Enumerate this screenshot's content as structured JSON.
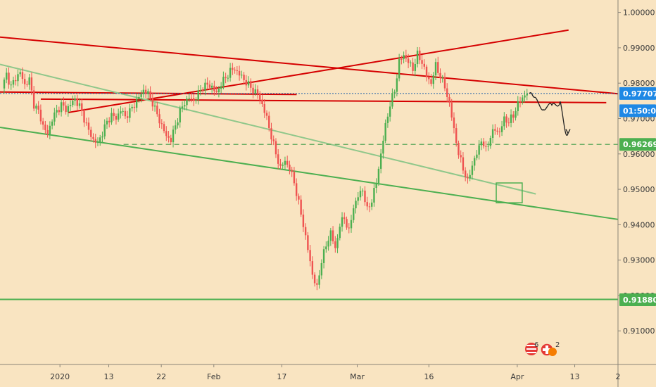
{
  "chart_data": {
    "type": "candlestick",
    "y_ticks": [
      "1.00000",
      "0.99000",
      "0.98000",
      "0.97000",
      "0.96000",
      "0.95000",
      "0.94000",
      "0.93000",
      "0.92000",
      "0.91000"
    ],
    "x_ticks": [
      "2020",
      "13",
      "22",
      "Feb",
      "17",
      "Mar",
      "16",
      "Apr",
      "13",
      "2"
    ],
    "ylim": [
      0.9005,
      1.0035
    ],
    "price_badges": {
      "current": {
        "label": "0.97707",
        "value": 0.97707,
        "color": "#1e88e5"
      },
      "timer": {
        "label": "01:50:03",
        "value": 0.9722,
        "color": "#1e88e5"
      },
      "dashed_level": {
        "label": "0.96269",
        "value": 0.96269,
        "color": "#4caf50"
      },
      "support_level": {
        "label": "0.91880",
        "value": 0.9188,
        "color": "#4caf50"
      }
    },
    "close_path": [
      0.9785,
      0.9825,
      0.979,
      0.9815,
      0.983,
      0.9795,
      0.981,
      0.974,
      0.972,
      0.968,
      0.9655,
      0.97,
      0.972,
      0.974,
      0.9725,
      0.974,
      0.9755,
      0.9735,
      0.97,
      0.9665,
      0.964,
      0.963,
      0.966,
      0.969,
      0.971,
      0.97,
      0.9725,
      0.9705,
      0.972,
      0.974,
      0.976,
      0.978,
      0.977,
      0.9745,
      0.971,
      0.968,
      0.965,
      0.964,
      0.968,
      0.972,
      0.9745,
      0.976,
      0.975,
      0.977,
      0.979,
      0.9795,
      0.979,
      0.977,
      0.98,
      0.9815,
      0.9835,
      0.984,
      0.9825,
      0.981,
      0.9795,
      0.978,
      0.977,
      0.974,
      0.97,
      0.965,
      0.96,
      0.956,
      0.958,
      0.956,
      0.952,
      0.946,
      0.94,
      0.933,
      0.926,
      0.922,
      0.93,
      0.934,
      0.938,
      0.933,
      0.94,
      0.942,
      0.938,
      0.945,
      0.948,
      0.95,
      0.944,
      0.947,
      0.952,
      0.96,
      0.968,
      0.974,
      0.978,
      0.986,
      0.988,
      0.986,
      0.984,
      0.988,
      0.986,
      0.982,
      0.98,
      0.985,
      0.982,
      0.979,
      0.974,
      0.967,
      0.96,
      0.956,
      0.952,
      0.957,
      0.96,
      0.964,
      0.961,
      0.965,
      0.967,
      0.966,
      0.97,
      0.969,
      0.971,
      0.974,
      0.976,
      0.9771
    ],
    "projection": [
      [
        0.9771,
        0.978
      ],
      [
        0.976,
        0.9758
      ],
      [
        0.9725,
        0.9718
      ],
      [
        0.9738,
        0.9756
      ],
      [
        0.9748,
        0.9716
      ],
      [
        0.9658,
        0.963
      ]
    ],
    "annotations": {
      "red_lines": [
        {
          "from": [
            0,
            0.993
          ],
          "to": [
            1,
            0.977
          ]
        },
        {
          "from": [
            0.066,
            0.9755
          ],
          "to": [
            0.981,
            0.9745
          ]
        },
        {
          "from": [
            0.11,
            0.9717
          ],
          "to": [
            0.92,
            0.995
          ]
        },
        {
          "from": [
            0,
            0.9775
          ],
          "to": [
            0.48,
            0.9768
          ]
        }
      ],
      "green_lines": [
        {
          "from": [
            0,
            0.9675
          ],
          "to": [
            1,
            0.9415
          ]
        },
        {
          "from": [
            0,
            0.9853
          ],
          "to": [
            0.867,
            0.9487
          ]
        },
        {
          "from": [
            0,
            0.9189
          ],
          "to": [
            1,
            0.9189
          ]
        }
      ],
      "green_box": {
        "from": [
          0.803,
          0.9518
        ],
        "to": [
          0.845,
          0.9462
        ]
      }
    },
    "series_colors": {
      "up": "#4caf50",
      "down": "#ef5350",
      "resistance": "#d50000",
      "support": "#4caf50",
      "dotted": "#1e5fa8"
    },
    "grid": false
  },
  "events": {
    "us_count": "6",
    "ch_count": "2"
  }
}
